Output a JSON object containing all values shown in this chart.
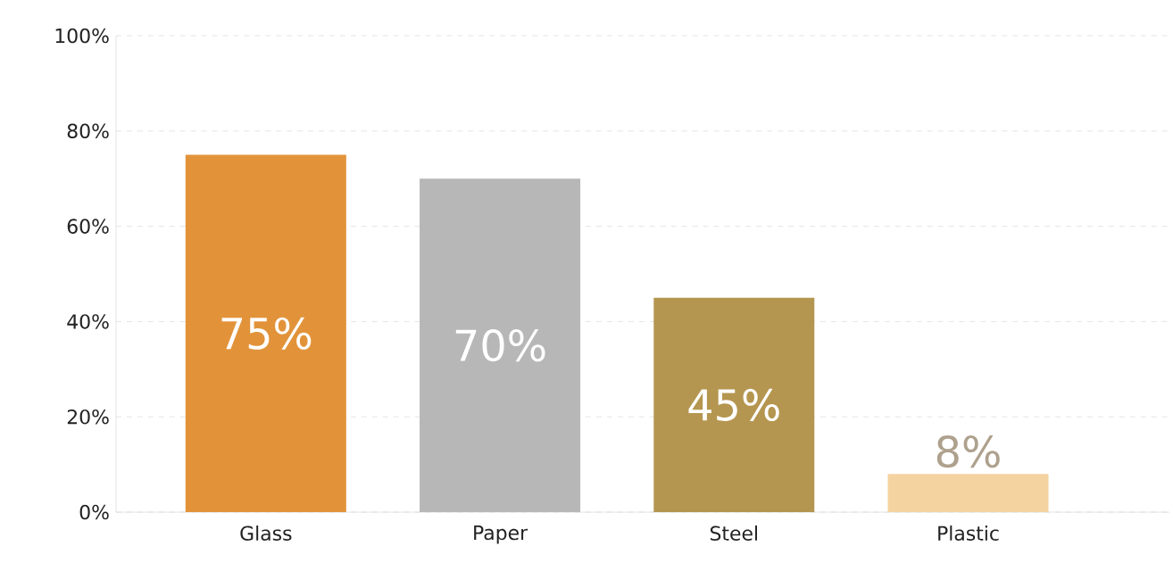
{
  "chart_data": {
    "type": "bar",
    "categories": [
      "Glass",
      "Paper",
      "Steel",
      "Plastic"
    ],
    "values": [
      75,
      70,
      45,
      8
    ],
    "value_labels": [
      "75%",
      "70%",
      "45%",
      "8%"
    ],
    "colors": [
      "#e2933a",
      "#b7b7b7",
      "#b59650",
      "#f5d3a0"
    ],
    "ylim": [
      0,
      100
    ],
    "yticks": [
      {
        "value": 0,
        "label": "0%"
      },
      {
        "value": 20,
        "label": "20%"
      },
      {
        "value": 40,
        "label": "40%"
      },
      {
        "value": 60,
        "label": "60%"
      },
      {
        "value": 80,
        "label": "80%"
      },
      {
        "value": 100,
        "label": "100%"
      }
    ],
    "grid": "y"
  }
}
